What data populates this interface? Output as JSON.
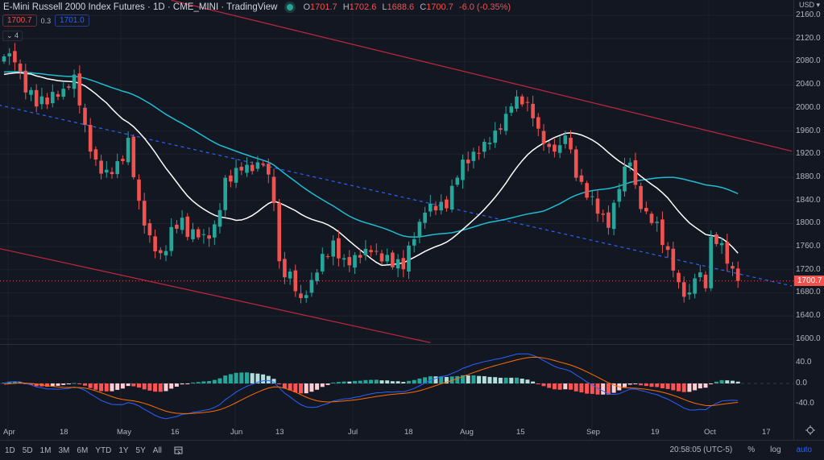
{
  "header": {
    "title": "E-Mini Russell 2000 Index Futures · 1D · CME_MINI · TradingView",
    "ohlc": [
      {
        "k": "O",
        "v": "1701.7"
      },
      {
        "k": "H",
        "v": "1702.6"
      },
      {
        "k": "L",
        "v": "1688.6"
      },
      {
        "k": "C",
        "v": "1700.7"
      }
    ],
    "change": "-6.0 (-0.35%)",
    "sell": "1700.7",
    "spread": "0.3",
    "buy": "1701.0",
    "collapsed": "⌄ 4"
  },
  "price_axis": {
    "currency": "USD ▾",
    "labels": [
      "2160.0",
      "2120.0",
      "2080.0",
      "2040.0",
      "2000.0",
      "1960.0",
      "1920.0",
      "1880.0",
      "1840.0",
      "1800.0",
      "1760.0",
      "1720.0",
      "1680.0",
      "1640.0",
      "1600.0"
    ],
    "last": "1700.7"
  },
  "macd_axis": {
    "labels": [
      "40.0",
      "0.0",
      "-40.0"
    ]
  },
  "time_axis": [
    "Apr",
    "18",
    "May",
    "16",
    "Jun",
    "13",
    "Jul",
    "18",
    "Aug",
    "15",
    "Sep",
    "19",
    "Oct",
    "17"
  ],
  "toolbar": {
    "ranges": [
      "1D",
      "5D",
      "1M",
      "3M",
      "6M",
      "YTD",
      "1Y",
      "5Y",
      "All"
    ],
    "time": "20:58:05 (UTC-5)",
    "percent": "%",
    "log": "log",
    "auto": "auto"
  },
  "colors": {
    "up": "#26a69a",
    "down": "#ef5350",
    "bg": "#131722",
    "sma20": "#ffffff",
    "sma50": "#1fbcd2",
    "channel": "#c2273e",
    "mid": "#2962ff"
  },
  "chart_data": {
    "type": "candlestick",
    "symbol": "RTY1!",
    "interval": "1D",
    "ylim": [
      1600,
      2160
    ],
    "macd_ylim": [
      -60,
      60
    ],
    "close_keypoints": [
      [
        0,
        2089
      ],
      [
        2,
        2089
      ],
      [
        4,
        2033
      ],
      [
        6,
        2005
      ],
      [
        8,
        2019
      ],
      [
        11,
        2033
      ],
      [
        13,
        2047
      ],
      [
        15,
        1964
      ],
      [
        17,
        1908
      ],
      [
        19,
        1880
      ],
      [
        22,
        1908
      ],
      [
        23,
        1943
      ],
      [
        25,
        1838
      ],
      [
        27,
        1768
      ],
      [
        29,
        1741
      ],
      [
        31,
        1790
      ],
      [
        33,
        1810
      ],
      [
        34,
        1782
      ],
      [
        37,
        1775
      ],
      [
        39,
        1796
      ],
      [
        41,
        1866
      ],
      [
        43,
        1887
      ],
      [
        46,
        1901
      ],
      [
        48,
        1908
      ],
      [
        50,
        1838
      ],
      [
        51,
        1727
      ],
      [
        53,
        1713
      ],
      [
        55,
        1671
      ],
      [
        57,
        1692
      ],
      [
        59,
        1741
      ],
      [
        61,
        1768
      ],
      [
        63,
        1727
      ],
      [
        66,
        1741
      ],
      [
        68,
        1761
      ],
      [
        70,
        1741
      ],
      [
        72,
        1727
      ],
      [
        74,
        1734
      ],
      [
        76,
        1782
      ],
      [
        78,
        1824
      ],
      [
        80,
        1824
      ],
      [
        82,
        1838
      ],
      [
        84,
        1887
      ],
      [
        86,
        1908
      ],
      [
        88,
        1922
      ],
      [
        90,
        1950
      ],
      [
        93,
        1978
      ],
      [
        94,
        2005
      ],
      [
        96,
        2019
      ],
      [
        98,
        1991
      ],
      [
        99,
        1964
      ],
      [
        101,
        1922
      ],
      [
        103,
        1929
      ],
      [
        104,
        1964
      ],
      [
        106,
        1887
      ],
      [
        107,
        1859
      ],
      [
        109,
        1838
      ],
      [
        110,
        1817
      ],
      [
        112,
        1803
      ],
      [
        114,
        1866
      ],
      [
        116,
        1908
      ],
      [
        117,
        1859
      ],
      [
        119,
        1817
      ],
      [
        121,
        1803
      ],
      [
        122,
        1768
      ],
      [
        124,
        1720
      ],
      [
        125,
        1692
      ],
      [
        127,
        1678
      ],
      [
        128,
        1713
      ],
      [
        130,
        1692
      ],
      [
        131,
        1768
      ],
      [
        133,
        1761
      ],
      [
        134,
        1741
      ],
      [
        136,
        1700.7
      ]
    ],
    "trendlines": [
      {
        "name": "upper-channel",
        "p1": [
          31,
          2186
        ],
        "p2": [
          146,
          1925
        ],
        "color": "channel",
        "dash": false
      },
      {
        "name": "lower-channel",
        "p1": [
          -1,
          1757
        ],
        "p2": [
          79,
          1594
        ],
        "color": "channel",
        "dash": false
      },
      {
        "name": "mid-trendline",
        "p1": [
          -1,
          2005
        ],
        "p2": [
          146,
          1692
        ],
        "color": "mid",
        "dash": true
      }
    ]
  }
}
